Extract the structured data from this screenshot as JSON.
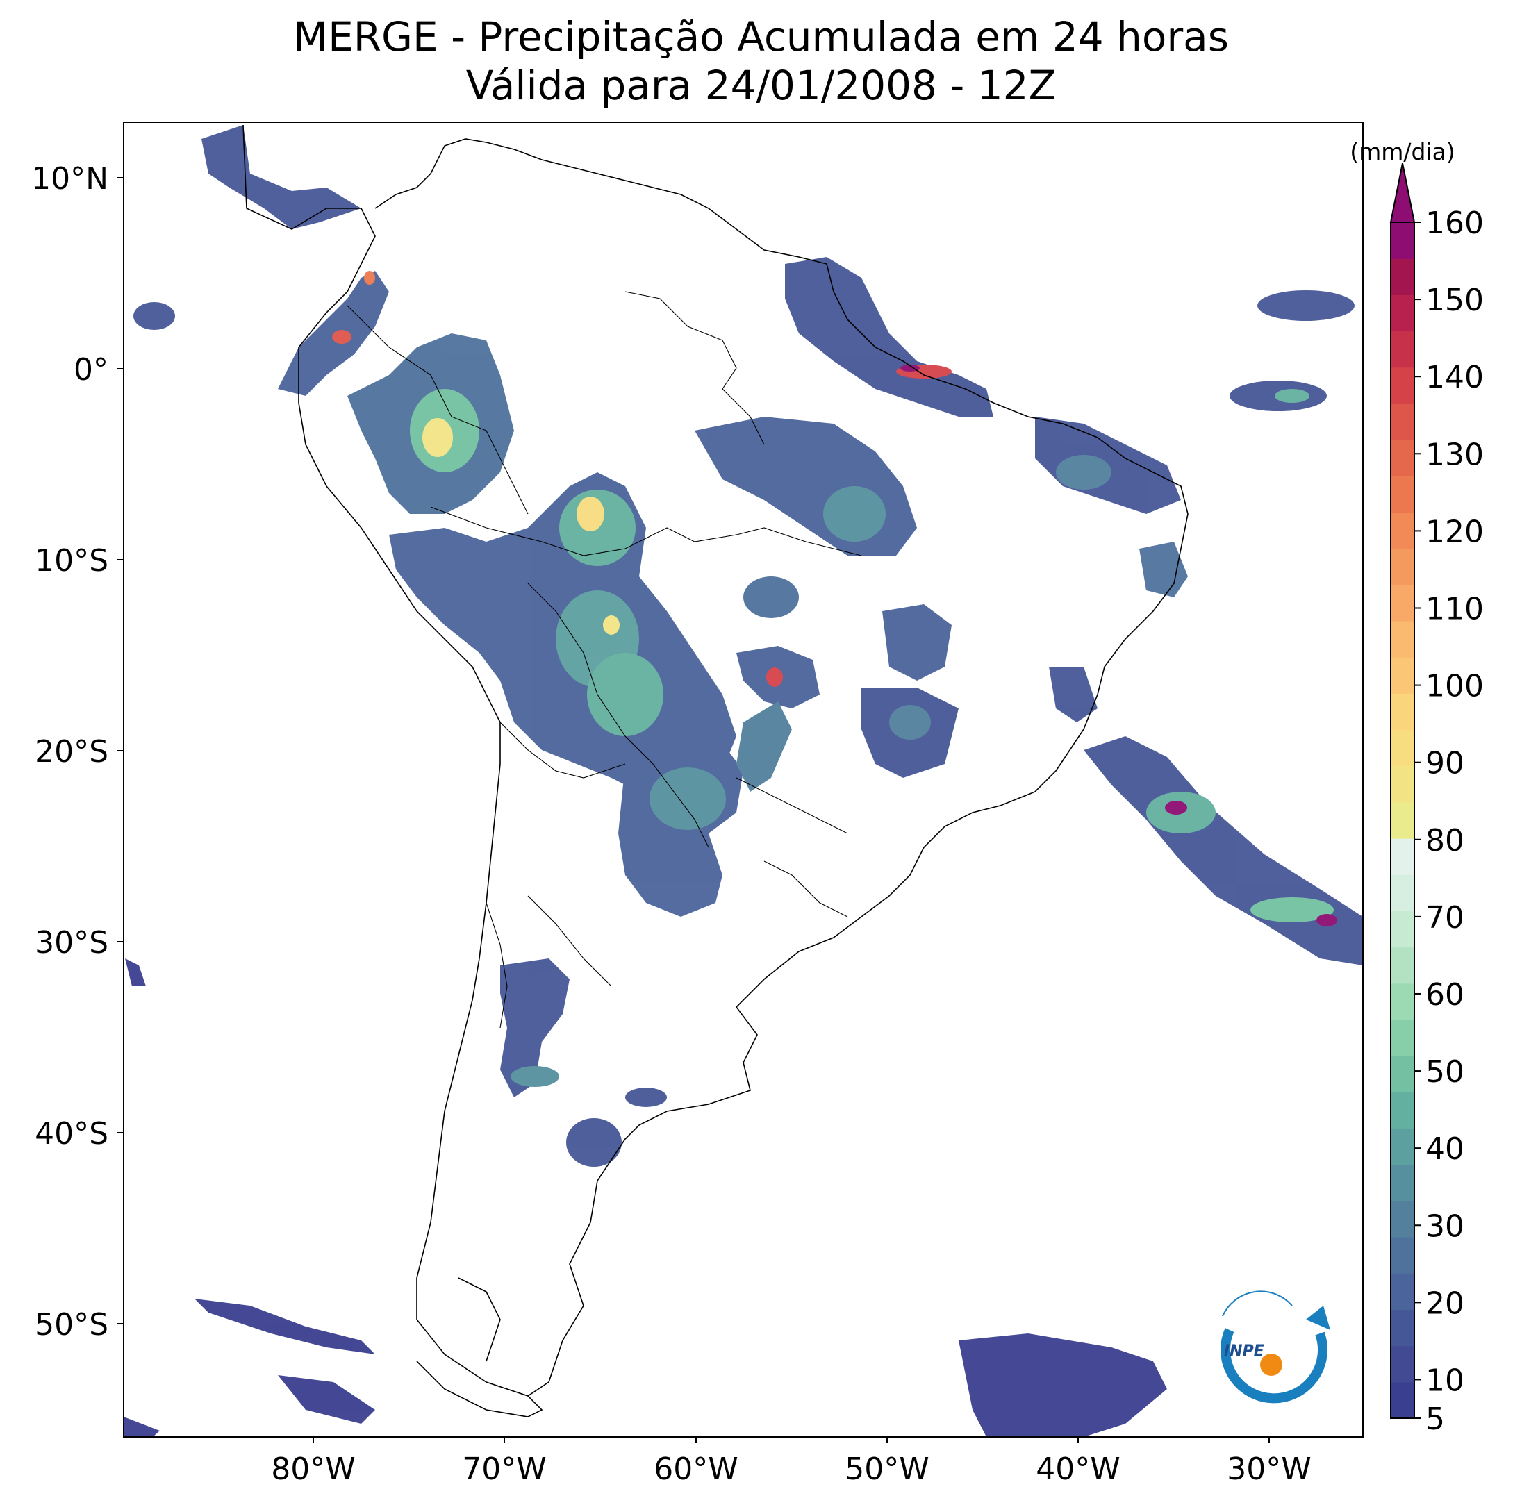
{
  "title": {
    "line1": "MERGE - Precipitação Acumulada em 24 horas",
    "line2": "Válida para 24/01/2008 - 12Z"
  },
  "map": {
    "lon_range": [
      -90,
      -25
    ],
    "lat_range": [
      -56,
      13
    ],
    "lon_ticks": [
      "80°W",
      "70°W",
      "60°W",
      "50°W",
      "40°W",
      "30°W"
    ],
    "lat_ticks": [
      "10°N",
      "0°",
      "10°S",
      "20°S",
      "30°S",
      "40°S",
      "50°S"
    ],
    "logo_text": "INPE"
  },
  "colorbar": {
    "units": "(mm/dia)",
    "tick_labels": [
      "5",
      "10",
      "20",
      "30",
      "40",
      "50",
      "60",
      "70",
      "80",
      "90",
      "100",
      "110",
      "120",
      "130",
      "140",
      "150",
      "160"
    ],
    "colors": [
      "#3b3f8f",
      "#414a93",
      "#465797",
      "#4b649b",
      "#4f729c",
      "#52809d",
      "#56909f",
      "#5ca0a0",
      "#64b0a0",
      "#73c1a2",
      "#87cfa8",
      "#9cdab4",
      "#b2e2c2",
      "#c6ebd2",
      "#d7efe0",
      "#e3f3ec",
      "#e9eb8c",
      "#f2e485",
      "#f7dd80",
      "#fad57c",
      "#fbc776",
      "#faba6f",
      "#f8a967",
      "#f59a5e",
      "#f18a56",
      "#ec7850",
      "#e5674c",
      "#de554a",
      "#d54349",
      "#c8314a",
      "#b8204e",
      "#a3154f",
      "#8e0d72"
    ]
  }
}
